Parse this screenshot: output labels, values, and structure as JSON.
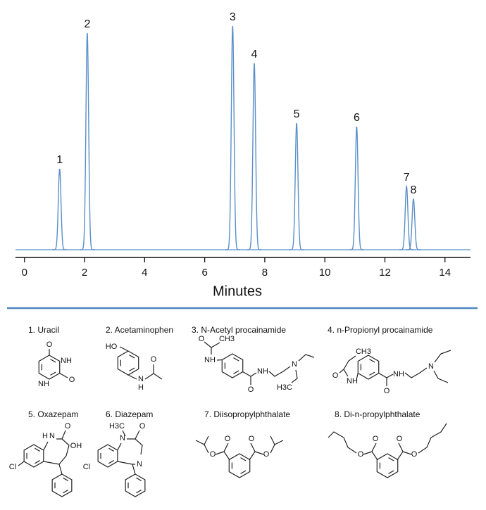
{
  "chart_data": {
    "type": "chromatogram",
    "xlabel": "Minutes",
    "xlim": [
      -0.3,
      14.85
    ],
    "xticks": [
      0,
      2,
      4,
      6,
      8,
      10,
      12,
      14
    ],
    "ylim": [
      0,
      330
    ],
    "color": "#5b8fc7",
    "peak_labels": [
      "1",
      "2",
      "3",
      "4",
      "5",
      "6",
      "7",
      "8"
    ],
    "x": [
      1.17,
      2.09,
      6.93,
      7.65,
      9.06,
      11.06,
      12.72,
      12.95
    ],
    "values": [
      115,
      308,
      318,
      265,
      180,
      175,
      90,
      72
    ]
  },
  "compounds": [
    {
      "name": "1. Uracil",
      "atoms": [
        "O",
        "NH",
        "O",
        "NH"
      ]
    },
    {
      "name": "2. Acetaminophen",
      "atoms": [
        "HO",
        "N",
        "H",
        "O"
      ]
    },
    {
      "name": "3. N-Acetyl procainamide",
      "atoms": [
        "O",
        "CH3",
        "NH",
        "O",
        "NH",
        "N",
        "H3C"
      ]
    },
    {
      "name": "4. n-Propionyl procainamide",
      "atoms": [
        "CH3",
        "O",
        "NH",
        "O",
        "NH",
        "N"
      ]
    },
    {
      "name": "5. Oxazepam",
      "atoms": [
        "H",
        "N",
        "O",
        "OH",
        "Cl"
      ]
    },
    {
      "name": "6. Diazepam",
      "atoms": [
        "H3C",
        "N",
        "O",
        "N",
        "Cl"
      ]
    },
    {
      "name": "7. Diisopropylphthalate",
      "atoms": [
        "O",
        "O",
        "O",
        "O"
      ]
    },
    {
      "name": "8. Di-n-propylphthalate",
      "atoms": [
        "O",
        "O",
        "O",
        "O"
      ]
    }
  ]
}
